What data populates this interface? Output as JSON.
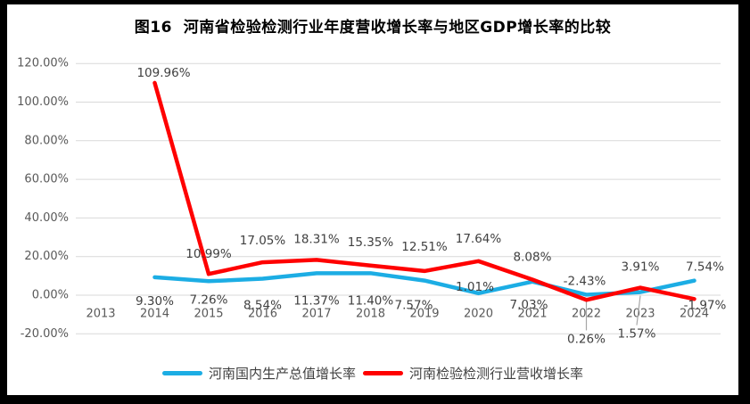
{
  "window": {
    "frame_color": "#000000",
    "panel_background": "#ffffff"
  },
  "chart_data": {
    "type": "line",
    "title": "图16  河南省检验检测行业年度营收增长率与地区GDP增长率的比较",
    "xlabel": "",
    "ylabel": "",
    "categories": [
      "2013",
      "2014",
      "2015",
      "2016",
      "2017",
      "2018",
      "2019",
      "2020",
      "2021",
      "2022",
      "2023",
      "2024"
    ],
    "series": [
      {
        "name": "河南国内生产总值增长率",
        "color": "#1CADE4",
        "values": [
          null,
          9.3,
          7.26,
          8.54,
          11.37,
          11.4,
          7.57,
          1.01,
          7.03,
          0.26,
          1.57,
          7.54
        ],
        "label_offsets": [
          null,
          [
            0,
            27
          ],
          [
            0,
            21
          ],
          [
            0,
            30
          ],
          [
            0,
            31
          ],
          [
            0,
            31
          ],
          [
            -12,
            28
          ],
          [
            -4,
            -7
          ],
          [
            -4,
            26
          ],
          [
            0,
            50
          ],
          [
            -4,
            47
          ],
          [
            12,
            -15
          ]
        ]
      },
      {
        "name": "河南检验检测行业营收增长率",
        "color": "#FF0000",
        "values": [
          null,
          109.96,
          10.99,
          17.05,
          18.31,
          15.35,
          12.51,
          17.64,
          8.08,
          -2.43,
          3.91,
          -1.97
        ],
        "label_offsets": [
          null,
          [
            10,
            -11
          ],
          [
            0,
            -22
          ],
          [
            0,
            -24
          ],
          [
            0,
            -23
          ],
          [
            0,
            -26
          ],
          [
            0,
            -27
          ],
          [
            0,
            -25
          ],
          [
            0,
            -25
          ],
          [
            -2,
            -21
          ],
          [
            0,
            -23
          ],
          [
            12,
            7
          ]
        ]
      }
    ],
    "ylim": [
      -20,
      120
    ],
    "ytick_step": 20,
    "yticks": [
      120,
      100,
      80,
      60,
      40,
      20,
      0,
      -20
    ],
    "ytick_labels": [
      "120.00%",
      "100.00%",
      "80.00%",
      "60.00%",
      "40.00%",
      "20.00%",
      "0.00%",
      "-20.00%"
    ],
    "value_format": "percent_2dp",
    "grid": true,
    "legend_position": "bottom",
    "colors": {
      "gridline": "#D9D9D9",
      "axis_label": "#595959",
      "data_label": "#404040",
      "leader_line": "#A6A6A6",
      "title": "#000000"
    }
  }
}
